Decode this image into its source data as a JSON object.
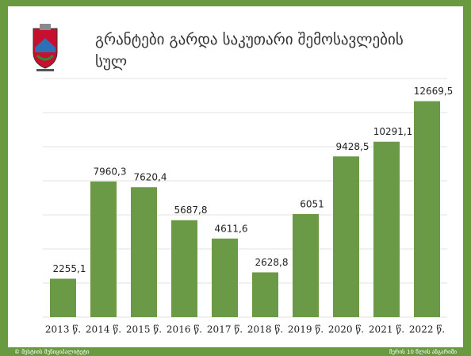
{
  "chart_data": {
    "type": "bar",
    "title": "გრანტები გარდა საკუთარი შემოსავლების სულ",
    "categories": [
      "2013 წ.",
      "2014 წ.",
      "2015 წ.",
      "2016 წ.",
      "2017 წ.",
      "2018 წ.",
      "2019 წ.",
      "2020 წ.",
      "2021 წ.",
      "2022 წ."
    ],
    "values": [
      2255.1,
      7960.3,
      7620.4,
      5687.8,
      4611.6,
      2628.8,
      6051,
      9428.5,
      10291.1,
      12669.5
    ],
    "value_labels": [
      "2255,1",
      "7960,3",
      "7620,4",
      "5687,8",
      "4611,6",
      "2628,8",
      "6051",
      "9428,5",
      "10291,1",
      "12669,5"
    ],
    "color": "#6a9a45",
    "ylim": [
      0,
      14000
    ],
    "yticks": [
      0,
      2000,
      4000,
      6000,
      8000,
      10000,
      12000,
      14000
    ],
    "grid": true
  },
  "footer": {
    "left": "© მესტიის მუნიციპალიტეტი",
    "right": "მერის 10 წლის ანგარიში"
  }
}
